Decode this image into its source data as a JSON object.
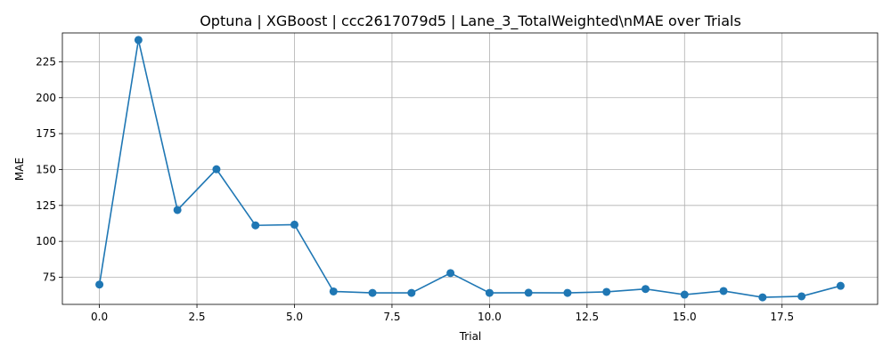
{
  "chart_data": {
    "type": "line",
    "title": "Optuna | XGBoost | ccc2617079d5 | Lane_3_TotalWeighted\\nMAE over Trials",
    "xlabel": "Trial",
    "ylabel": "MAE",
    "xlim": [
      -0.95,
      19.95
    ],
    "ylim": [
      56.1,
      245.1
    ],
    "x_ticks": [
      0.0,
      2.5,
      5.0,
      7.5,
      10.0,
      12.5,
      15.0,
      17.5
    ],
    "x_tick_labels": [
      "0.0",
      "2.5",
      "5.0",
      "7.5",
      "10.0",
      "12.5",
      "15.0",
      "17.5"
    ],
    "y_ticks": [
      75,
      100,
      125,
      150,
      175,
      200,
      225
    ],
    "y_tick_labels": [
      "75",
      "100",
      "125",
      "150",
      "175",
      "200",
      "225"
    ],
    "grid": true,
    "color": "#1f77b4",
    "marker": "circle",
    "series": [
      {
        "x": [
          0,
          1,
          2,
          3,
          4,
          5,
          6,
          7,
          8,
          9,
          10,
          11,
          12,
          13,
          14,
          15,
          16,
          17,
          18,
          19
        ],
        "values": [
          69.9,
          240.2,
          121.8,
          150.2,
          111.1,
          111.6,
          65.1,
          64.1,
          64.1,
          77.9,
          64.1,
          64.2,
          64.1,
          64.8,
          66.8,
          62.9,
          65.4,
          61.0,
          61.7,
          69.0
        ]
      }
    ]
  }
}
